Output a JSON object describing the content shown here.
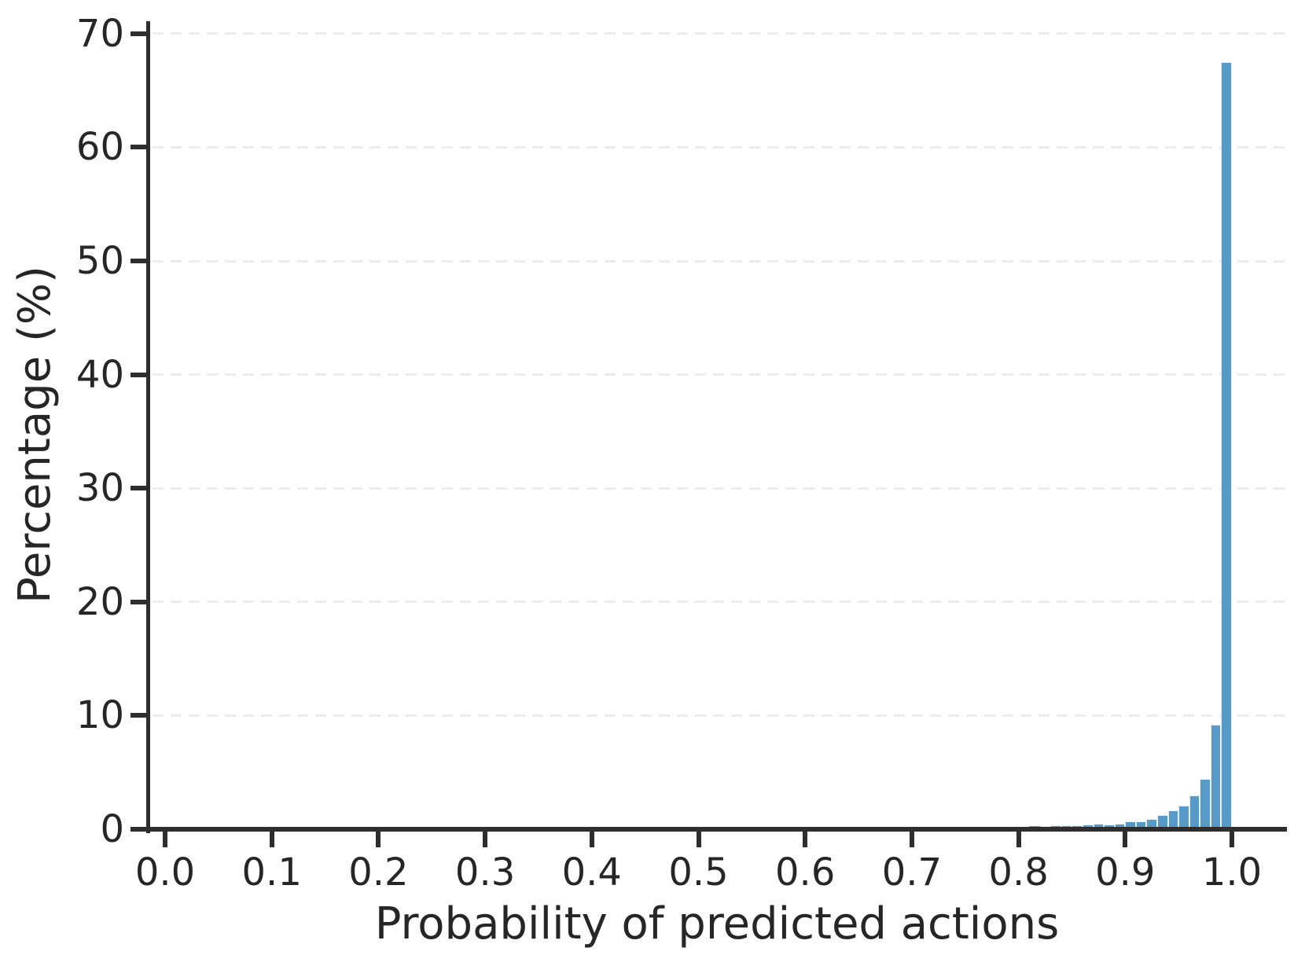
{
  "figure": {
    "background_color": "#ffffff",
    "bar_color": "#5799c7",
    "bar_edge_color": "#ffffff",
    "grid_color": "#ececec",
    "axis_color": "#2e2e2e",
    "text_color": "#262626"
  },
  "chart_data": {
    "type": "bar",
    "subtype": "histogram",
    "title": "",
    "xlabel": "Probability of predicted actions",
    "ylabel": "Percentage (%)",
    "xlim": [
      -0.016,
      1.052
    ],
    "ylim": [
      0,
      71.1
    ],
    "grid": "horizontal-dashed",
    "legend": "none",
    "x_tick_labels": [
      "0.0",
      "0.1",
      "0.2",
      "0.3",
      "0.4",
      "0.5",
      "0.6",
      "0.7",
      "0.8",
      "0.9",
      "1.0"
    ],
    "x_tick_values": [
      0.0,
      0.1,
      0.2,
      0.3,
      0.4,
      0.5,
      0.6,
      0.7,
      0.8,
      0.9,
      1.0
    ],
    "y_tick_labels": [
      "0",
      "10",
      "20",
      "30",
      "40",
      "50",
      "60",
      "70"
    ],
    "y_tick_values": [
      0,
      10,
      20,
      30,
      40,
      50,
      60,
      70
    ],
    "y_gridline_values": [
      10,
      20,
      30,
      40,
      50,
      60,
      70
    ],
    "bins": {
      "width": 0.01,
      "start": 0.7,
      "note": "percentage per 0.01-wide probability bin; bins below 0.70 are visually zero",
      "starts": [
        0.7,
        0.71,
        0.72,
        0.73,
        0.74,
        0.75,
        0.76,
        0.77,
        0.78,
        0.79,
        0.8,
        0.81,
        0.82,
        0.83,
        0.84,
        0.85,
        0.86,
        0.87,
        0.88,
        0.89,
        0.9,
        0.91,
        0.92,
        0.93,
        0.94,
        0.95,
        0.96,
        0.97,
        0.98,
        0.99
      ],
      "values": [
        0.03,
        0.03,
        0.04,
        0.05,
        0.07,
        0.09,
        0.11,
        0.13,
        0.16,
        0.2,
        0.24,
        0.27,
        0.3,
        0.32,
        0.35,
        0.38,
        0.42,
        0.47,
        0.45,
        0.5,
        0.67,
        0.72,
        0.88,
        1.22,
        1.68,
        2.08,
        3.0,
        4.45,
        9.2,
        67.5
      ]
    }
  }
}
